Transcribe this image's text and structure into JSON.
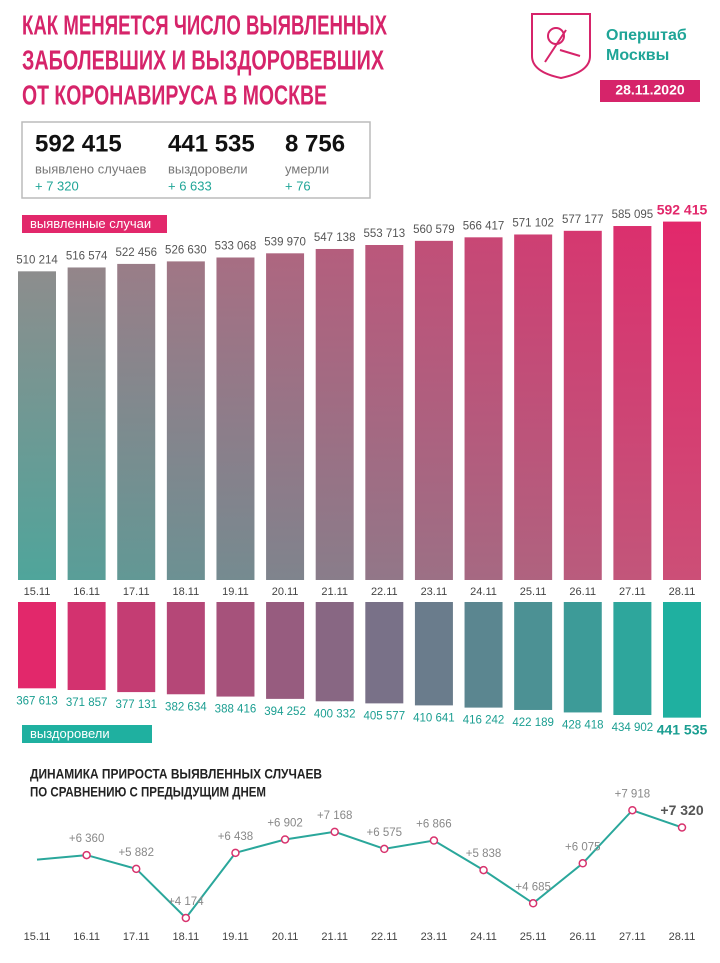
{
  "header": {
    "title_lines": [
      "КАК МЕНЯЕТСЯ ЧИСЛО ВЫЯВЛЕННЫХ",
      "ЗАБОЛЕВШИХ И ВЫЗДОРОВЕВШИХ",
      "ОТ КОРОНАВИРУСА В МОСКВЕ"
    ],
    "org_lines": [
      "Оперштаб",
      "Москвы"
    ],
    "date": "28.11.2020"
  },
  "summary": [
    {
      "value": "592 415",
      "label": "выявлено случаев",
      "delta": "+ 7 320"
    },
    {
      "value": "441 535",
      "label": "выздоровели",
      "delta": "+ 6 633"
    },
    {
      "value": "8 756",
      "label": "умерли",
      "delta": "+ 76"
    }
  ],
  "chart_data": [
    {
      "type": "mirrored-bar",
      "categories": [
        "15.11",
        "16.11",
        "17.11",
        "18.11",
        "19.11",
        "20.11",
        "21.11",
        "22.11",
        "23.11",
        "24.11",
        "25.11",
        "26.11",
        "27.11",
        "28.11"
      ],
      "ylim": [
        0,
        600000
      ],
      "y2lim": [
        150000,
        450000
      ],
      "series": [
        {
          "name": "выявленные случаи",
          "color": "#e2286b",
          "values": [
            510214,
            516574,
            522456,
            526630,
            533068,
            539970,
            547138,
            553713,
            560579,
            566417,
            571102,
            577177,
            585095,
            592415
          ],
          "value_labels": [
            "510 214",
            "516 574",
            "522 456",
            "526 630",
            "533 068",
            "539 970",
            "547 138",
            "553 713",
            "560 579",
            "566 417",
            "571 102",
            "577 177",
            "585 095",
            "592 415"
          ]
        },
        {
          "name": "выздоровели",
          "color": "#1fb0a0",
          "axis": "y2",
          "values": [
            367613,
            371857,
            377131,
            382634,
            388416,
            394252,
            400332,
            405577,
            410641,
            416242,
            422189,
            428418,
            434902,
            441535
          ],
          "value_labels": [
            "367 613",
            "371 857",
            "377 131",
            "382 634",
            "388 416",
            "394 252",
            "400 332",
            "405 577",
            "410 641",
            "416 242",
            "422 189",
            "428 418",
            "434 902",
            "441 535"
          ]
        }
      ]
    },
    {
      "type": "line",
      "title": [
        "ДИНАМИКА ПРИРОСТА ВЫЯВЛЕННЫХ СЛУЧАЕВ",
        "ПО СРАВНЕНИЮ С ПРЕДЫДУЩИМ ДНЕМ"
      ],
      "categories": [
        "15.11",
        "16.11",
        "17.11",
        "18.11",
        "19.11",
        "20.11",
        "21.11",
        "22.11",
        "23.11",
        "24.11",
        "25.11",
        "26.11",
        "27.11",
        "28.11"
      ],
      "color": "#2aa79b",
      "marker_color": "#d8336e",
      "ylim": [
        4000,
        8100
      ],
      "values": [
        6200,
        6360,
        5882,
        4174,
        6438,
        6902,
        7168,
        6575,
        6866,
        5838,
        4685,
        6075,
        7918,
        7320
      ],
      "value_labels": [
        null,
        "+6 360",
        "+5 882",
        "+4 174",
        "+6 438",
        "+6 902",
        "+7 168",
        "+6 575",
        "+6 866",
        "+5 838",
        "+4 685",
        "+6 075",
        "+7 918",
        "+7 320"
      ]
    }
  ]
}
